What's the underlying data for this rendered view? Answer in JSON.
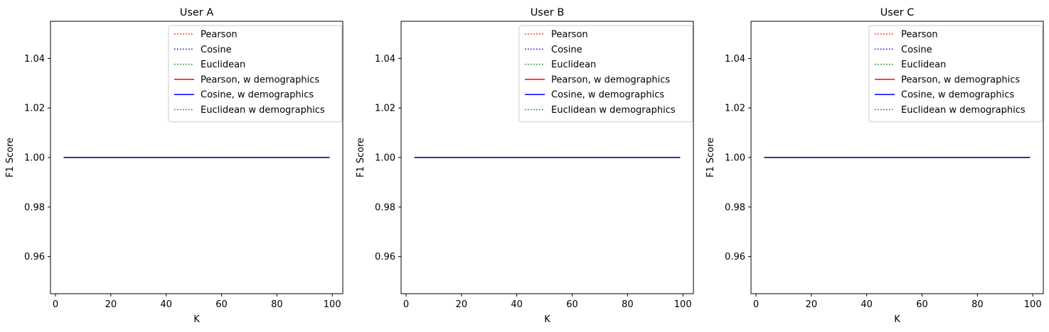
{
  "chart_data": [
    {
      "type": "line",
      "title": "User A",
      "xlabel": "K",
      "ylabel": "F1 Score",
      "xlim": [
        -1.8,
        103.8
      ],
      "ylim": [
        0.945,
        1.055
      ],
      "xticks": [
        0,
        20,
        40,
        60,
        80,
        100
      ],
      "yticks": [
        0.96,
        0.98,
        1.0,
        1.02,
        1.04
      ],
      "ytick_labels": [
        "0.96",
        "0.98",
        "1.00",
        "1.02",
        "1.04"
      ],
      "legend_position": "top-right",
      "grid": false,
      "series": [
        {
          "name": "Pearson",
          "color": "#ff0000",
          "style": "dotted",
          "x": [
            3,
            99
          ],
          "y": [
            1.0,
            1.0
          ]
        },
        {
          "name": "Cosine",
          "color": "#0000ff",
          "style": "dotted",
          "x": [
            3,
            99
          ],
          "y": [
            1.0,
            1.0
          ]
        },
        {
          "name": "Euclidean",
          "color": "#008000",
          "style": "dotted",
          "x": [
            3,
            99
          ],
          "y": [
            1.0,
            1.0
          ]
        },
        {
          "name": "Pearson, w demographics",
          "color": "#ff0000",
          "style": "solid",
          "x": [
            3,
            99
          ],
          "y": [
            1.0,
            1.0
          ]
        },
        {
          "name": "Cosine, w demographics",
          "color": "#0000ff",
          "style": "solid",
          "x": [
            3,
            99
          ],
          "y": [
            1.0,
            1.0
          ]
        },
        {
          "name": "Euclidean w demographics",
          "color": "#008000",
          "style": "dotted",
          "x": [
            3,
            99
          ],
          "y": [
            1.0,
            1.0
          ]
        }
      ]
    },
    {
      "type": "line",
      "title": "User B",
      "xlabel": "K",
      "ylabel": "F1 Score",
      "xlim": [
        -1.8,
        103.8
      ],
      "ylim": [
        0.945,
        1.055
      ],
      "xticks": [
        0,
        20,
        40,
        60,
        80,
        100
      ],
      "yticks": [
        0.96,
        0.98,
        1.0,
        1.02,
        1.04
      ],
      "ytick_labels": [
        "0.96",
        "0.98",
        "1.00",
        "1.02",
        "1.04"
      ],
      "legend_position": "top-right",
      "grid": false,
      "series": [
        {
          "name": "Pearson",
          "color": "#ff0000",
          "style": "dotted",
          "x": [
            3,
            99
          ],
          "y": [
            1.0,
            1.0
          ]
        },
        {
          "name": "Cosine",
          "color": "#0000ff",
          "style": "dotted",
          "x": [
            3,
            99
          ],
          "y": [
            1.0,
            1.0
          ]
        },
        {
          "name": "Euclidean",
          "color": "#008000",
          "style": "dotted",
          "x": [
            3,
            99
          ],
          "y": [
            1.0,
            1.0
          ]
        },
        {
          "name": "Pearson, w demographics",
          "color": "#ff0000",
          "style": "solid",
          "x": [
            3,
            99
          ],
          "y": [
            1.0,
            1.0
          ]
        },
        {
          "name": "Cosine, w demographics",
          "color": "#0000ff",
          "style": "solid",
          "x": [
            3,
            99
          ],
          "y": [
            1.0,
            1.0
          ]
        },
        {
          "name": "Euclidean w demographics",
          "color": "#008000",
          "style": "dotted",
          "x": [
            3,
            99
          ],
          "y": [
            1.0,
            1.0
          ]
        }
      ]
    },
    {
      "type": "line",
      "title": "User C",
      "xlabel": "K",
      "ylabel": "F1 Score",
      "xlim": [
        -1.8,
        103.8
      ],
      "ylim": [
        0.945,
        1.055
      ],
      "xticks": [
        0,
        20,
        40,
        60,
        80,
        100
      ],
      "yticks": [
        0.96,
        0.98,
        1.0,
        1.02,
        1.04
      ],
      "ytick_labels": [
        "0.96",
        "0.98",
        "1.00",
        "1.02",
        "1.04"
      ],
      "legend_position": "top-right",
      "grid": false,
      "series": [
        {
          "name": "Pearson",
          "color": "#ff0000",
          "style": "dotted",
          "x": [
            3,
            99
          ],
          "y": [
            1.0,
            1.0
          ]
        },
        {
          "name": "Cosine",
          "color": "#0000ff",
          "style": "dotted",
          "x": [
            3,
            99
          ],
          "y": [
            1.0,
            1.0
          ]
        },
        {
          "name": "Euclidean",
          "color": "#008000",
          "style": "dotted",
          "x": [
            3,
            99
          ],
          "y": [
            1.0,
            1.0
          ]
        },
        {
          "name": "Pearson, w demographics",
          "color": "#ff0000",
          "style": "solid",
          "x": [
            3,
            99
          ],
          "y": [
            1.0,
            1.0
          ]
        },
        {
          "name": "Cosine, w demographics",
          "color": "#0000ff",
          "style": "solid",
          "x": [
            3,
            99
          ],
          "y": [
            1.0,
            1.0
          ]
        },
        {
          "name": "Euclidean w demographics",
          "color": "#008000",
          "style": "dotted",
          "x": [
            3,
            99
          ],
          "y": [
            1.0,
            1.0
          ]
        }
      ]
    }
  ]
}
